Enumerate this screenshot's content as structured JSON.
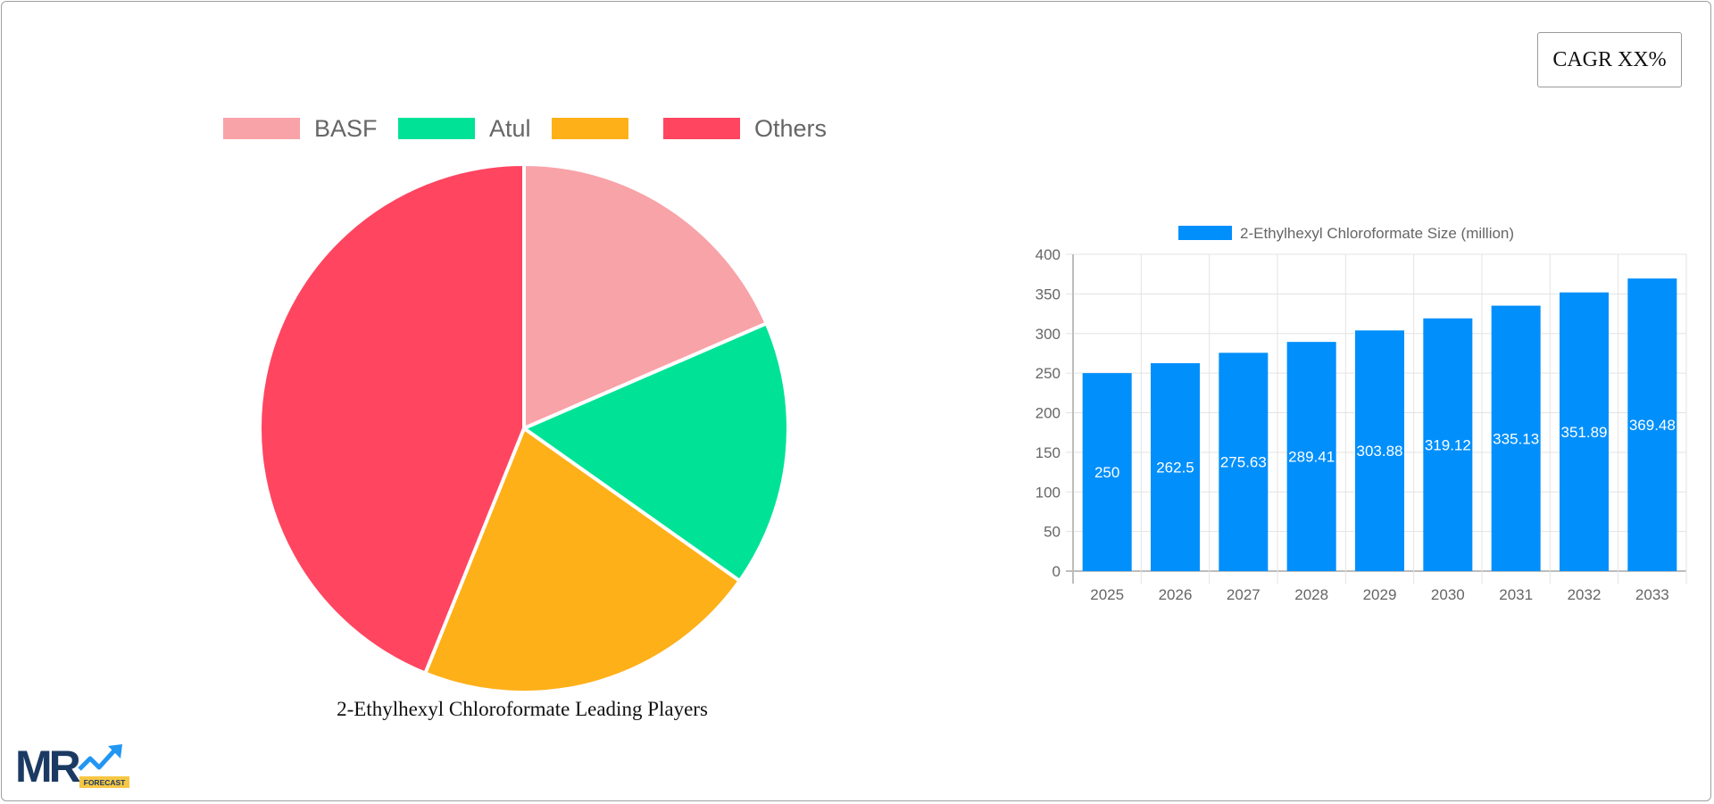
{
  "cagr": {
    "label": "CAGR XX%"
  },
  "pie": {
    "caption": "2-Ethylhexyl Chloroformate Leading Players",
    "legend": [
      {
        "label": "BASF",
        "color": "#f8a3a8"
      },
      {
        "label": "Atul",
        "color": "#00e396"
      },
      {
        "label": "",
        "color": "#feb019"
      },
      {
        "label": "Others",
        "color": "#ff4560"
      }
    ]
  },
  "bar": {
    "legend_label": "2-Ethylhexyl Chloroformate Size (million)",
    "color": "#008ffb"
  },
  "logo": {
    "text": "MR",
    "badge": "FORECAST"
  },
  "chart_data": [
    {
      "type": "pie",
      "title": "2-Ethylhexyl Chloroformate Leading Players",
      "categories": [
        "BASF",
        "Atul",
        "",
        "Others"
      ],
      "values": [
        18.5,
        16.3,
        21.3,
        43.9
      ],
      "colors": [
        "#f8a3a8",
        "#00e396",
        "#feb019",
        "#ff4560"
      ],
      "legend_position": "top"
    },
    {
      "type": "bar",
      "title": "",
      "categories": [
        "2025",
        "2026",
        "2027",
        "2028",
        "2029",
        "2030",
        "2031",
        "2032",
        "2033"
      ],
      "series": [
        {
          "name": "2-Ethylhexyl Chloroformate Size (million)",
          "values": [
            250,
            262.5,
            275.63,
            289.41,
            303.88,
            319.12,
            335.13,
            351.89,
            369.48
          ]
        }
      ],
      "xlabel": "",
      "ylabel": "",
      "ylim": [
        0,
        400
      ],
      "yticks": [
        0,
        50,
        100,
        150,
        200,
        250,
        300,
        350,
        400
      ],
      "grid": true,
      "legend_position": "top",
      "data_labels": true
    }
  ]
}
